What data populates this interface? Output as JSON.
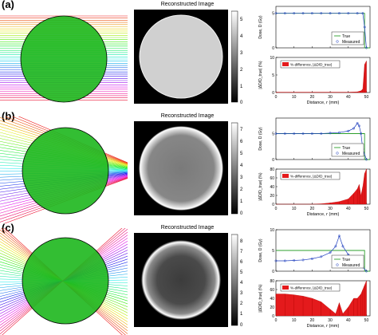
{
  "panels": [
    {
      "label": "(a)",
      "recon_title": "Reconstructed Image",
      "colorbar_ticks": [
        "5",
        "4",
        "3",
        "2",
        "1",
        "0"
      ],
      "dose_ylabel": "Dose, D (Gy)",
      "diff_ylabel": "|ΔD/D_true| (%)",
      "xlabel": "Distance, r (mm)",
      "legend": [
        "True",
        "Measured"
      ],
      "diff_legend": "%-difference, |ΔD/D_true|"
    },
    {
      "label": "(b)",
      "recon_title": "Reconstructed Image",
      "colorbar_ticks": [
        "7",
        "6",
        "5",
        "4",
        "3",
        "2",
        "1",
        "0"
      ],
      "dose_ylabel": "Dose, D (Gy)",
      "diff_ylabel": "|ΔD/D_true| (%)",
      "xlabel": "Distance, r (mm)",
      "legend": [
        "True",
        "Measured"
      ],
      "diff_legend": "%-difference, |ΔD/D_true|"
    },
    {
      "label": "(c)",
      "recon_title": "Reconstructed Image",
      "colorbar_ticks": [
        "8",
        "7",
        "6",
        "5",
        "4",
        "3",
        "2",
        "1",
        "0"
      ],
      "dose_ylabel": "Dose, D (Gy)",
      "diff_ylabel": "|ΔD/D_true| (%)",
      "xlabel": "Distance, r (mm)",
      "legend": [
        "True",
        "Measured"
      ],
      "diff_legend": "%-difference, |ΔD/D_true|"
    }
  ],
  "chart_data": [
    {
      "type": "line",
      "panel": "(a)",
      "xlim": [
        0,
        52
      ],
      "x_ticks": [
        0,
        10,
        20,
        30,
        40,
        50
      ],
      "dose": {
        "ylim": [
          0,
          6
        ],
        "yticks": [
          0,
          5
        ],
        "true": {
          "x": [
            0,
            49,
            49,
            52
          ],
          "y": [
            5,
            5,
            0,
            0
          ]
        },
        "measured": {
          "x": [
            0,
            5,
            10,
            15,
            20,
            25,
            30,
            35,
            40,
            45,
            48,
            49,
            50
          ],
          "y": [
            5,
            5,
            5,
            5,
            5,
            5,
            5,
            5,
            5,
            5,
            5,
            3,
            0
          ]
        }
      },
      "diff": {
        "ylim": [
          0,
          10
        ],
        "yticks": [
          0,
          5,
          10
        ],
        "x": [
          0,
          10,
          20,
          30,
          40,
          45,
          47,
          48,
          49,
          50
        ],
        "y": [
          0.1,
          0.1,
          0.1,
          0.1,
          0.1,
          0.2,
          0.5,
          1,
          8,
          9
        ]
      }
    },
    {
      "type": "line",
      "panel": "(b)",
      "xlim": [
        0,
        52
      ],
      "x_ticks": [
        0,
        10,
        20,
        30,
        40,
        50
      ],
      "dose": {
        "ylim": [
          0,
          8
        ],
        "yticks": [
          0,
          5
        ],
        "true": {
          "x": [
            0,
            49,
            49,
            52
          ],
          "y": [
            5,
            5,
            0,
            0
          ]
        },
        "measured": {
          "x": [
            0,
            5,
            10,
            15,
            20,
            25,
            30,
            35,
            40,
            43,
            45,
            46,
            47,
            48,
            50
          ],
          "y": [
            5,
            5,
            5,
            5,
            5,
            5,
            5.1,
            5.2,
            5.5,
            6,
            7,
            6.5,
            5,
            2,
            0
          ]
        }
      },
      "diff": {
        "ylim": [
          0,
          80
        ],
        "yticks": [
          0,
          20,
          40,
          60,
          80
        ],
        "x": [
          0,
          10,
          20,
          25,
          30,
          35,
          40,
          43,
          45,
          46,
          47,
          48,
          49,
          50
        ],
        "y": [
          0,
          0,
          0,
          1,
          3,
          6,
          12,
          25,
          35,
          45,
          20,
          40,
          70,
          80
        ]
      }
    },
    {
      "type": "line",
      "panel": "(c)",
      "xlim": [
        0,
        52
      ],
      "x_ticks": [
        0,
        10,
        20,
        30,
        40,
        50
      ],
      "dose": {
        "ylim": [
          0,
          10
        ],
        "yticks": [
          0,
          5,
          10
        ],
        "true": {
          "x": [
            0,
            49,
            49,
            52
          ],
          "y": [
            5,
            5,
            0,
            0
          ]
        },
        "measured": {
          "x": [
            0,
            5,
            10,
            15,
            20,
            25,
            30,
            33,
            35,
            37,
            40,
            43,
            45,
            47,
            48,
            50
          ],
          "y": [
            2.5,
            2.5,
            2.6,
            2.7,
            3,
            3.5,
            4.5,
            6,
            8.5,
            6,
            4,
            3,
            3,
            2.5,
            1,
            0
          ]
        }
      },
      "diff": {
        "ylim": [
          0,
          80
        ],
        "yticks": [
          0,
          20,
          40,
          60,
          80
        ],
        "x": [
          0,
          5,
          10,
          15,
          20,
          25,
          30,
          33,
          35,
          37,
          40,
          43,
          45,
          47,
          48,
          49,
          50
        ],
        "y": [
          50,
          50,
          48,
          45,
          40,
          32,
          15,
          5,
          30,
          5,
          20,
          40,
          40,
          50,
          60,
          70,
          80
        ]
      }
    }
  ]
}
